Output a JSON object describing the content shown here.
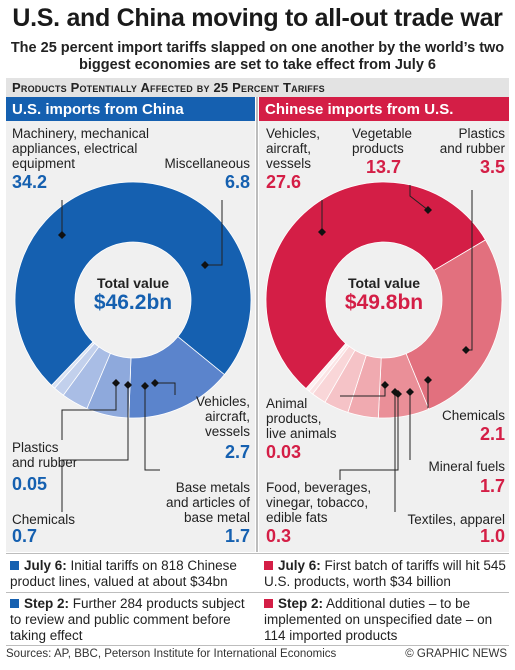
{
  "title": "U.S. and China moving to all-out trade war",
  "subtitle": "The 25 percent import tariffs slapped on one another by the world’s two biggest economies are set to take effect from July 6",
  "band_heading": "Products Potentially Affected by 25 Percent Tariffs",
  "colors": {
    "us_blue": "#1560b0",
    "china_red": "#d41e46"
  },
  "chart_data": [
    {
      "type": "pie",
      "title": "U.S. imports from China",
      "center_label": "Total value",
      "total": "$46.2bn",
      "unit": "$bn",
      "slices": [
        {
          "label": "Machinery, mechanical appliances, electrical equipment",
          "value": "34.2"
        },
        {
          "label": "Miscellaneous",
          "value": "6.8"
        },
        {
          "label": "Vehicles, aircraft, vessels",
          "value": "2.7"
        },
        {
          "label": "Base metals and articles of base metal",
          "value": "1.7"
        },
        {
          "label": "Chemicals",
          "value": "0.7"
        },
        {
          "label": "Plastics and rubber",
          "value": "0.05"
        }
      ]
    },
    {
      "type": "pie",
      "title": "Chinese imports from U.S.",
      "center_label": "Total value",
      "total": "$49.8bn",
      "unit": "$bn",
      "slices": [
        {
          "label": "Vehicles, aircraft, vessels",
          "value": "27.6"
        },
        {
          "label": "Vegetable products",
          "value": "13.7"
        },
        {
          "label": "Plastics and rubber",
          "value": "3.5"
        },
        {
          "label": "Chemicals",
          "value": "2.1"
        },
        {
          "label": "Mineral fuels",
          "value": "1.7"
        },
        {
          "label": "Textiles, apparel",
          "value": "1.0"
        },
        {
          "label": "Food, beverages, vinegar, tobacco, edible fats",
          "value": "0.3"
        },
        {
          "label": "Animal products, live animals",
          "value": "0.03"
        }
      ]
    }
  ],
  "left_labels": {
    "machinery": [
      "Machinery, mechanical",
      "appliances, electrical",
      "equipment"
    ],
    "misc": [
      "Miscellaneous"
    ],
    "vehicles": [
      "Vehicles,",
      "aircraft,",
      "vessels"
    ],
    "plastics": [
      "Plastics",
      "and rubber"
    ],
    "base": [
      "Base metals",
      "and articles of",
      "base metal"
    ],
    "chemicals": [
      "Chemicals"
    ]
  },
  "right_labels": {
    "vehicles": [
      "Vehicles,",
      "aircraft,",
      "vessels"
    ],
    "vegetable": [
      "Vegetable",
      "products"
    ],
    "plastics": [
      "Plastics",
      "and rubber"
    ],
    "animal": [
      "Animal",
      "products,",
      "live animals"
    ],
    "chemicals": [
      "Chemicals"
    ],
    "mineral": [
      "Mineral fuels"
    ],
    "food": [
      "Food, beverages,",
      "vinegar, tobacco,",
      "edible fats"
    ],
    "textiles": [
      "Textiles, apparel"
    ]
  },
  "notes": {
    "left": [
      {
        "head": "July 6:",
        "text": " Initial tariffs on 818 Chinese product lines, valued at about $34bn"
      },
      {
        "head": "Step 2:",
        "text": " Further 284 products subject to review and public comment before taking effect"
      }
    ],
    "right": [
      {
        "head": "July 6:",
        "text": " First batch of tariffs will hit 545 U.S. products, worth $34 billion"
      },
      {
        "head": "Step 2:",
        "text": " Additional duties – to be implemented on unspecified date – on 114 imported products"
      }
    ]
  },
  "footer": {
    "sources": "Sources: AP, BBC, Peterson Institute for International Economics",
    "brand": "© GRAPHIC NEWS"
  }
}
